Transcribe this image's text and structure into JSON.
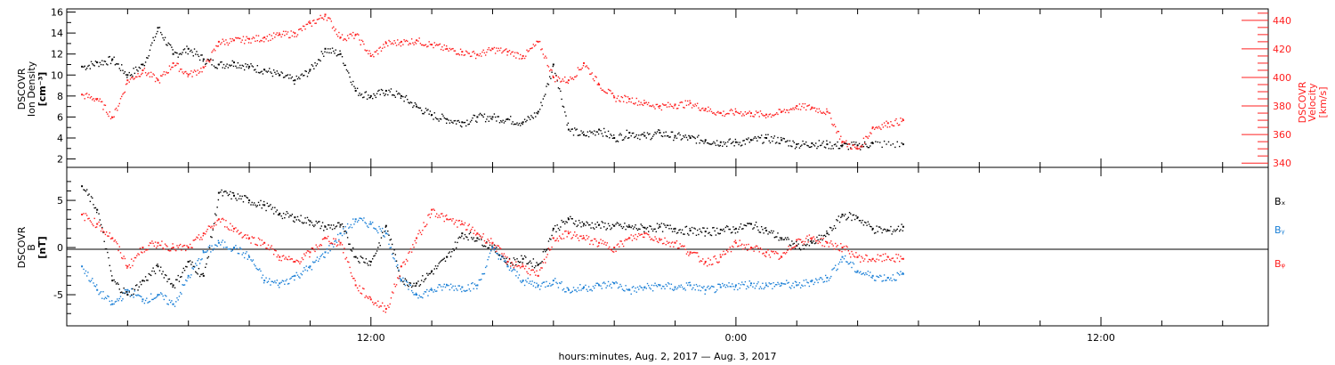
{
  "chart_data": [
    {
      "type": "scatter",
      "ylabel_left": [
        "DSCOVR",
        "Ion Density",
        "[cm⁻³]"
      ],
      "ylabel_right": [
        "DSCOVR",
        "Velocity",
        "[km/s]"
      ],
      "ylim_left": [
        1.2,
        16.3
      ],
      "ylim_right": [
        337,
        448
      ],
      "yticks_left": [
        2,
        4,
        6,
        8,
        10,
        12,
        14,
        16
      ],
      "yticks_right": [
        340,
        360,
        380,
        400,
        420,
        440
      ],
      "colors": {
        "density": "#000000",
        "velocity": "#ff2020"
      },
      "series": [
        {
          "name": "Ion Density",
          "axis": "left",
          "x": [
            2.5,
            3.0,
            3.5,
            4.0,
            4.5,
            5.0,
            5.5,
            6.0,
            6.5,
            7.0,
            7.5,
            8.0,
            8.5,
            9.0,
            9.5,
            10.0,
            10.5,
            11.0,
            11.5,
            12.0,
            12.5,
            13.0,
            13.5,
            14.0,
            14.5,
            15.0,
            15.5,
            16.0,
            16.5,
            17.0,
            17.5,
            18.0,
            18.5,
            19.0,
            19.5,
            20.0,
            20.5,
            21.0,
            21.5,
            22.0,
            22.5,
            23.0,
            23.5,
            24.0,
            24.5,
            25.0,
            25.5,
            26.0,
            26.5,
            27.0,
            27.5,
            28.0,
            28.5,
            29.5
          ],
          "values": [
            10.8,
            11.2,
            11.5,
            10.0,
            11.0,
            14.5,
            12.0,
            12.5,
            11.5,
            11.0,
            11.2,
            10.8,
            10.5,
            10.0,
            9.5,
            10.5,
            12.5,
            12.0,
            8.5,
            8.0,
            8.5,
            8.0,
            7.0,
            6.2,
            5.8,
            5.5,
            6.0,
            6.0,
            5.8,
            5.5,
            6.5,
            11.0,
            4.8,
            4.3,
            4.8,
            4.0,
            4.5,
            4.2,
            4.5,
            4.2,
            4.0,
            3.8,
            3.6,
            3.6,
            3.8,
            4.0,
            3.8,
            3.4,
            3.5,
            3.4,
            3.3,
            3.3,
            3.5,
            3.4
          ]
        },
        {
          "name": "Velocity",
          "axis": "right",
          "x": [
            2.5,
            3.0,
            3.5,
            4.0,
            4.5,
            5.0,
            5.5,
            6.0,
            6.5,
            7.0,
            7.5,
            8.0,
            8.5,
            9.0,
            9.5,
            10.0,
            10.5,
            11.0,
            11.5,
            12.0,
            12.5,
            13.0,
            13.5,
            14.0,
            14.5,
            15.0,
            15.5,
            16.0,
            16.5,
            17.0,
            17.5,
            18.0,
            18.5,
            19.0,
            19.5,
            20.0,
            20.5,
            21.0,
            21.5,
            22.0,
            22.5,
            23.0,
            23.5,
            24.0,
            24.5,
            25.0,
            25.5,
            26.0,
            26.5,
            27.0,
            27.5,
            28.0,
            28.5,
            29.0,
            29.5
          ],
          "values": [
            388,
            385,
            372,
            398,
            405,
            398,
            410,
            402,
            407,
            425,
            426,
            427,
            428,
            430,
            431,
            438,
            444,
            428,
            430,
            415,
            424,
            425,
            426,
            423,
            420,
            418,
            416,
            420,
            418,
            415,
            425,
            400,
            398,
            410,
            395,
            386,
            385,
            382,
            380,
            381,
            382,
            378,
            375,
            376,
            375,
            374,
            376,
            380,
            379,
            376,
            355,
            350,
            365,
            368,
            370
          ]
        }
      ]
    },
    {
      "type": "scatter",
      "ylabel": [
        "DSCOVR",
        "B",
        "[nT]"
      ],
      "ylim": [
        -8.3,
        8.5
      ],
      "yticks": [
        -5,
        0,
        5
      ],
      "zero_line": true,
      "legend": [
        "Bₓ",
        "Bᵧ",
        "Bᵩ"
      ],
      "colors": {
        "Bx": "#000000",
        "By": "#1a7fd6",
        "Bz": "#ff2020"
      },
      "series": [
        {
          "name": "Bx",
          "x": [
            2.5,
            3.0,
            3.5,
            4.0,
            4.5,
            5.0,
            5.5,
            6.0,
            6.5,
            7.0,
            7.5,
            8.0,
            8.5,
            9.0,
            9.5,
            10.0,
            10.5,
            11.0,
            11.5,
            12.0,
            12.5,
            13.0,
            13.5,
            14.0,
            14.5,
            15.0,
            15.5,
            16.0,
            16.5,
            17.0,
            17.5,
            18.0,
            18.5,
            19.0,
            19.5,
            20.0,
            20.5,
            21.0,
            21.5,
            22.0,
            22.5,
            23.0,
            23.5,
            24.0,
            24.5,
            25.0,
            25.5,
            26.0,
            26.5,
            27.0,
            27.5,
            28.0,
            28.5,
            29.0,
            29.5
          ],
          "values": [
            6.5,
            4.0,
            -3.5,
            -5.0,
            -3.5,
            -2.0,
            -4.0,
            -1.5,
            -3.0,
            5.8,
            5.5,
            5.0,
            4.5,
            3.6,
            3.2,
            2.8,
            2.2,
            2.4,
            -1.0,
            -1.5,
            2.3,
            -3.5,
            -3.8,
            -2.5,
            -1.0,
            1.5,
            1.0,
            0.0,
            -1.5,
            -1.2,
            -1.8,
            2.0,
            3.0,
            2.5,
            2.4,
            2.3,
            2.2,
            2.1,
            2.2,
            2.0,
            1.8,
            1.7,
            1.9,
            2.0,
            2.5,
            1.8,
            1.0,
            0.2,
            0.5,
            1.5,
            3.5,
            3.2,
            2.0,
            1.8,
            2.2
          ]
        },
        {
          "name": "By",
          "x": [
            2.5,
            3.0,
            3.5,
            4.0,
            4.5,
            5.0,
            5.5,
            6.0,
            6.5,
            7.0,
            7.5,
            8.0,
            8.5,
            9.0,
            9.5,
            10.0,
            10.5,
            11.0,
            11.5,
            12.0,
            12.5,
            13.0,
            13.5,
            14.0,
            14.5,
            15.0,
            15.5,
            16.0,
            16.5,
            17.0,
            17.5,
            18.0,
            18.5,
            19.0,
            19.5,
            20.0,
            20.5,
            21.0,
            21.5,
            22.0,
            22.5,
            23.0,
            23.5,
            24.0,
            24.5,
            25.0,
            25.5,
            26.0,
            26.5,
            27.0,
            27.5,
            28.0,
            28.5,
            29.0,
            29.5
          ],
          "values": [
            -2.0,
            -4.5,
            -6.0,
            -4.5,
            -5.5,
            -5.0,
            -6.0,
            -3.0,
            -0.5,
            0.5,
            0.0,
            -1.0,
            -3.5,
            -3.8,
            -3.0,
            -2.0,
            -0.5,
            1.5,
            3.0,
            2.5,
            1.5,
            -3.5,
            -5.0,
            -4.5,
            -4.0,
            -4.2,
            -4.0,
            0.0,
            -2.0,
            -3.5,
            -4.0,
            -3.5,
            -4.5,
            -4.2,
            -4.0,
            -3.8,
            -4.5,
            -4.2,
            -4.0,
            -4.2,
            -4.0,
            -4.5,
            -4.2,
            -4.0,
            -3.8,
            -4.0,
            -3.8,
            -4.0,
            -3.5,
            -3.2,
            -1.0,
            -2.5,
            -3.0,
            -3.2,
            -2.8
          ]
        },
        {
          "name": "Bz",
          "x": [
            2.5,
            3.0,
            3.5,
            4.0,
            4.5,
            5.0,
            5.5,
            6.0,
            6.5,
            7.0,
            7.5,
            8.0,
            8.5,
            9.0,
            9.5,
            10.0,
            10.5,
            11.0,
            11.5,
            12.0,
            12.5,
            13.0,
            13.5,
            14.0,
            14.5,
            15.0,
            15.5,
            16.0,
            16.5,
            17.0,
            17.5,
            18.0,
            18.5,
            19.0,
            19.5,
            20.0,
            20.5,
            21.0,
            21.5,
            22.0,
            22.5,
            23.0,
            23.5,
            24.0,
            24.5,
            25.0,
            25.5,
            26.0,
            26.5,
            27.0,
            27.5,
            28.0,
            28.5,
            29.0,
            29.5
          ],
          "values": [
            3.5,
            2.5,
            1.0,
            -2.0,
            0.0,
            0.5,
            0.0,
            0.0,
            1.5,
            3.0,
            2.0,
            1.0,
            0.5,
            -1.0,
            -1.5,
            -0.5,
            1.0,
            0.5,
            -4.0,
            -5.5,
            -6.5,
            -2.0,
            1.0,
            4.0,
            3.0,
            2.5,
            1.5,
            0.5,
            -1.5,
            -2.0,
            -3.0,
            1.0,
            1.5,
            1.0,
            0.5,
            0.0,
            1.0,
            1.5,
            0.8,
            0.5,
            -0.5,
            -1.5,
            -1.0,
            0.5,
            0.0,
            -0.5,
            -1.0,
            0.8,
            1.0,
            0.5,
            0.0,
            -1.0,
            -1.2,
            -1.0,
            -1.2
          ]
        }
      ]
    }
  ],
  "x_axis": {
    "ticklabels": [
      {
        "value": 12,
        "label": "12:00"
      },
      {
        "value": 24,
        "label": "0:00"
      },
      {
        "value": 36,
        "label": "12:00"
      }
    ],
    "title": "hours:minutes, Aug.  2, 2017 — Aug.  3, 2017",
    "xlim": [
      2.0,
      41.5
    ]
  }
}
